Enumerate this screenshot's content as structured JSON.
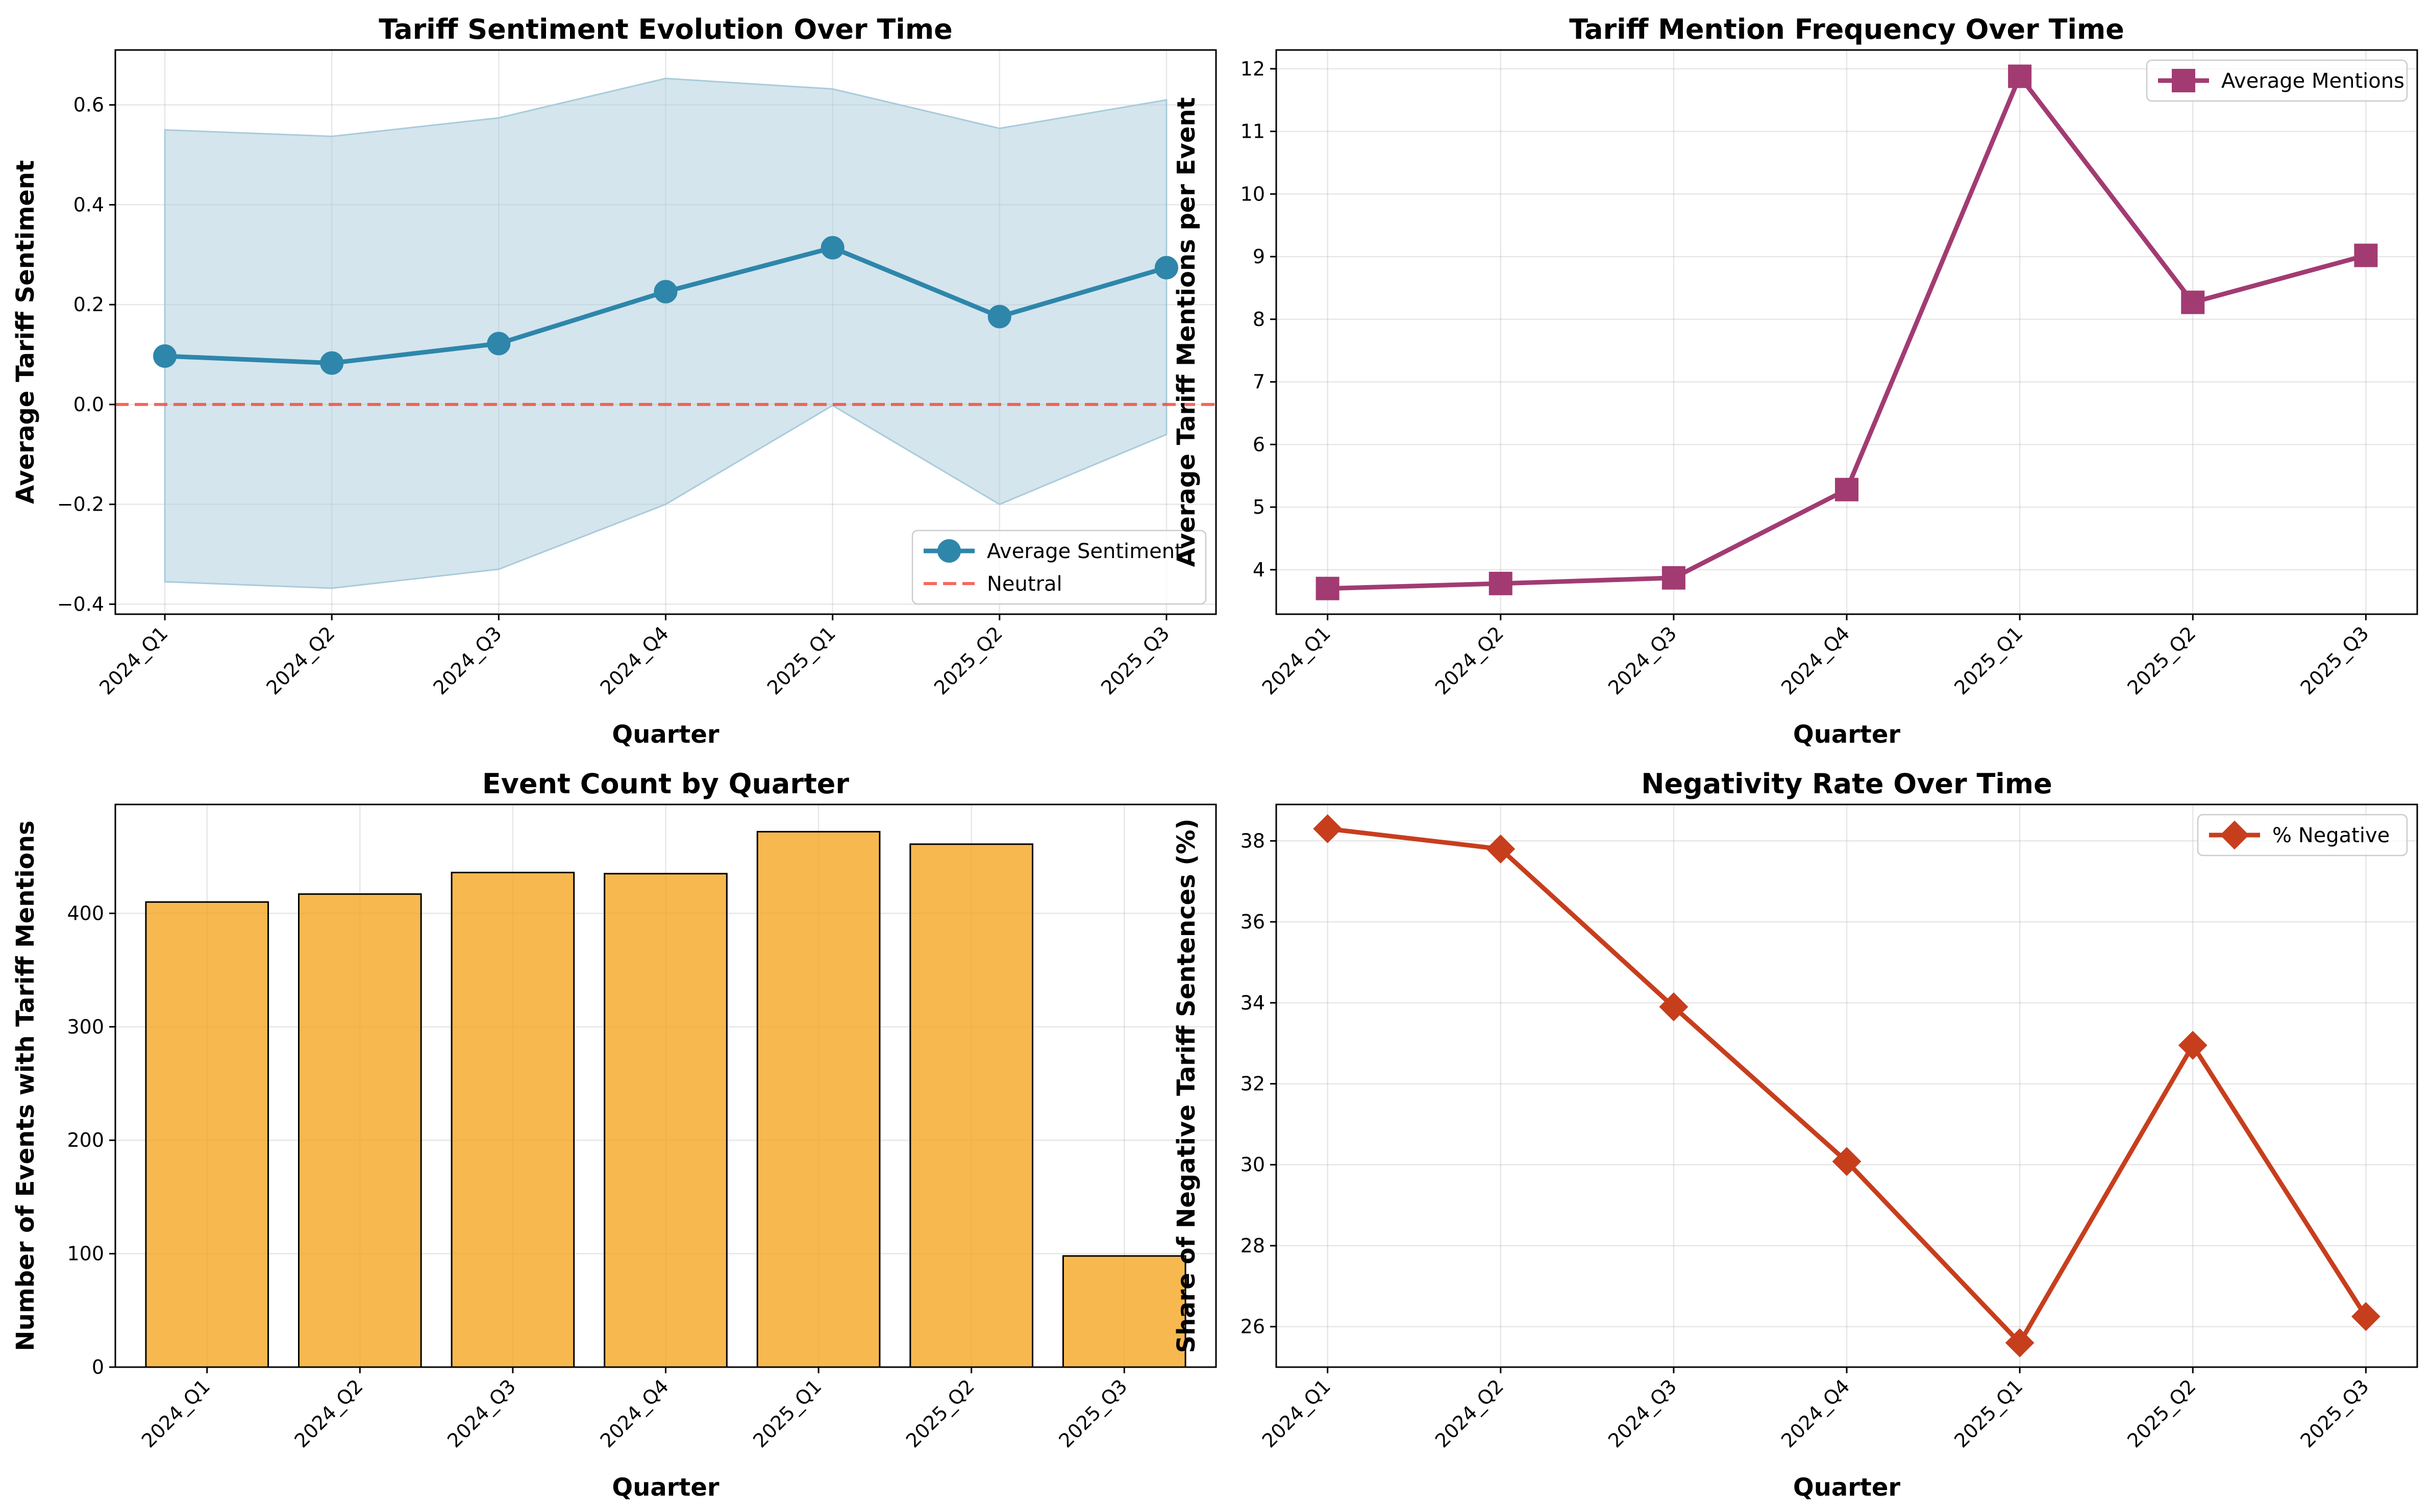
{
  "chart_data": [
    {
      "id": "sentiment",
      "type": "line",
      "title": "Tariff Sentiment Evolution Over Time",
      "xlabel": "Quarter",
      "ylabel": "Average Tariff Sentiment",
      "categories": [
        "2024_Q1",
        "2024_Q2",
        "2024_Q3",
        "2024_Q4",
        "2025_Q1",
        "2025_Q2",
        "2025_Q3"
      ],
      "ylim": [
        -0.42,
        0.71
      ],
      "yticks": [
        -0.4,
        -0.2,
        0.0,
        0.2,
        0.4,
        0.6
      ],
      "ytick_labels": [
        "−0.4",
        "−0.2",
        "0.0",
        "0.2",
        "0.4",
        "0.6"
      ],
      "grid": true,
      "legend_position": "lower-right",
      "series": [
        {
          "name": "Average Sentiment",
          "values": [
            0.097,
            0.083,
            0.122,
            0.226,
            0.314,
            0.176,
            0.274
          ],
          "color": "#2e86ab",
          "marker": "circle"
        }
      ],
      "band": {
        "lower": [
          -0.355,
          -0.368,
          -0.33,
          -0.2,
          -0.002,
          -0.2,
          -0.06
        ],
        "upper": [
          0.55,
          0.537,
          0.574,
          0.653,
          0.632,
          0.553,
          0.61
        ],
        "color": "#a9cbdc"
      },
      "reference_line": {
        "name": "Neutral",
        "value": 0.0,
        "color": "#f44336"
      }
    },
    {
      "id": "mentions",
      "type": "line",
      "title": "Tariff Mention Frequency Over Time",
      "xlabel": "Quarter",
      "ylabel": "Average Tariff Mentions per Event",
      "categories": [
        "2024_Q1",
        "2024_Q2",
        "2024_Q3",
        "2024_Q4",
        "2025_Q1",
        "2025_Q2",
        "2025_Q3"
      ],
      "ylim": [
        3.29,
        12.3
      ],
      "yticks": [
        4,
        5,
        6,
        7,
        8,
        9,
        10,
        11,
        12
      ],
      "ytick_labels": [
        "4",
        "5",
        "6",
        "7",
        "8",
        "9",
        "10",
        "11",
        "12"
      ],
      "grid": true,
      "legend_position": "upper-right",
      "series": [
        {
          "name": "Average Mentions",
          "values": [
            3.7,
            3.78,
            3.87,
            5.28,
            11.88,
            8.27,
            9.02
          ],
          "color": "#a23b72",
          "marker": "square"
        }
      ]
    },
    {
      "id": "events",
      "type": "bar",
      "title": "Event Count by Quarter",
      "xlabel": "Quarter",
      "ylabel": "Number of Events with Tariff Mentions",
      "categories": [
        "2024_Q1",
        "2024_Q2",
        "2024_Q3",
        "2024_Q4",
        "2025_Q1",
        "2025_Q2",
        "2025_Q3"
      ],
      "ylim": [
        0,
        496
      ],
      "yticks": [
        0,
        100,
        200,
        300,
        400
      ],
      "ytick_labels": [
        "0",
        "100",
        "200",
        "300",
        "400"
      ],
      "grid": true,
      "series": [
        {
          "name": "",
          "values": [
            410,
            417,
            436,
            435,
            472,
            461,
            98
          ],
          "color": "#f5a623",
          "marker": "bar"
        }
      ]
    },
    {
      "id": "negativity",
      "type": "line",
      "title": "Negativity Rate Over Time",
      "xlabel": "Quarter",
      "ylabel": "Share of Negative Tariff Sentences (%)",
      "categories": [
        "2024_Q1",
        "2024_Q2",
        "2024_Q3",
        "2024_Q4",
        "2025_Q1",
        "2025_Q2",
        "2025_Q3"
      ],
      "ylim": [
        25.0,
        38.9
      ],
      "yticks": [
        26,
        28,
        30,
        32,
        34,
        36,
        38
      ],
      "ytick_labels": [
        "26",
        "28",
        "30",
        "32",
        "34",
        "36",
        "38"
      ],
      "grid": true,
      "legend_position": "upper-right",
      "series": [
        {
          "name": "% Negative",
          "values": [
            38.3,
            37.8,
            33.9,
            30.08,
            25.6,
            32.95,
            26.25
          ],
          "color": "#c73e1d",
          "marker": "diamond"
        }
      ]
    }
  ]
}
